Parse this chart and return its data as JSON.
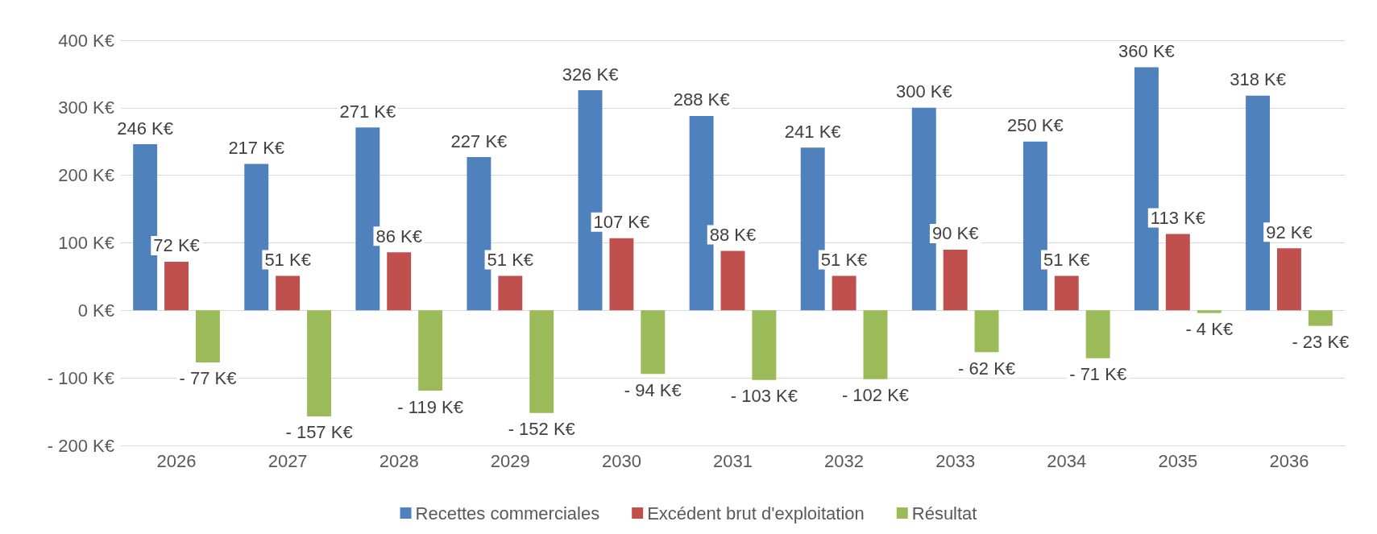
{
  "chart_data": {
    "type": "bar",
    "categories": [
      "2026",
      "2027",
      "2028",
      "2029",
      "2030",
      "2031",
      "2032",
      "2033",
      "2034",
      "2035",
      "2036"
    ],
    "series": [
      {
        "name": "Recettes commerciales",
        "color": "#4f81bd",
        "values": [
          246,
          217,
          271,
          227,
          326,
          288,
          241,
          300,
          250,
          360,
          318
        ],
        "value_labels": [
          "246 K€",
          "217 K€",
          "271 K€",
          "227 K€",
          "326 K€",
          "288 K€",
          "241 K€",
          "300 K€",
          "250 K€",
          "360 K€",
          "318 K€"
        ]
      },
      {
        "name": "Excédent brut d'exploitation",
        "color": "#c0504d",
        "values": [
          72,
          51,
          86,
          51,
          107,
          88,
          51,
          90,
          51,
          113,
          92
        ],
        "value_labels": [
          "72 K€",
          "51 K€",
          "86 K€",
          "51 K€",
          "107 K€",
          "88 K€",
          "51 K€",
          "90 K€",
          "51 K€",
          "113 K€",
          "92 K€"
        ]
      },
      {
        "name": "Résultat",
        "color": "#9bbb59",
        "values": [
          -77,
          -157,
          -119,
          -152,
          -94,
          -103,
          -102,
          -62,
          -71,
          -4,
          -23
        ],
        "value_labels": [
          "- 77 K€",
          "- 157 K€",
          "- 119 K€",
          "- 152 K€",
          "- 94 K€",
          "- 103 K€",
          "- 102 K€",
          "- 62 K€",
          "- 71 K€",
          "- 4 K€",
          "- 23 K€"
        ]
      }
    ],
    "ylim": [
      -200,
      400
    ],
    "yticks": [
      {
        "value": -200,
        "label": "- 200 K€"
      },
      {
        "value": -100,
        "label": "- 100 K€"
      },
      {
        "value": 0,
        "label": "0 K€"
      },
      {
        "value": 100,
        "label": "100 K€"
      },
      {
        "value": 200,
        "label": "200 K€"
      },
      {
        "value": 300,
        "label": "300 K€"
      },
      {
        "value": 400,
        "label": "400 K€"
      }
    ],
    "grid": "y",
    "legend": "bottom"
  }
}
